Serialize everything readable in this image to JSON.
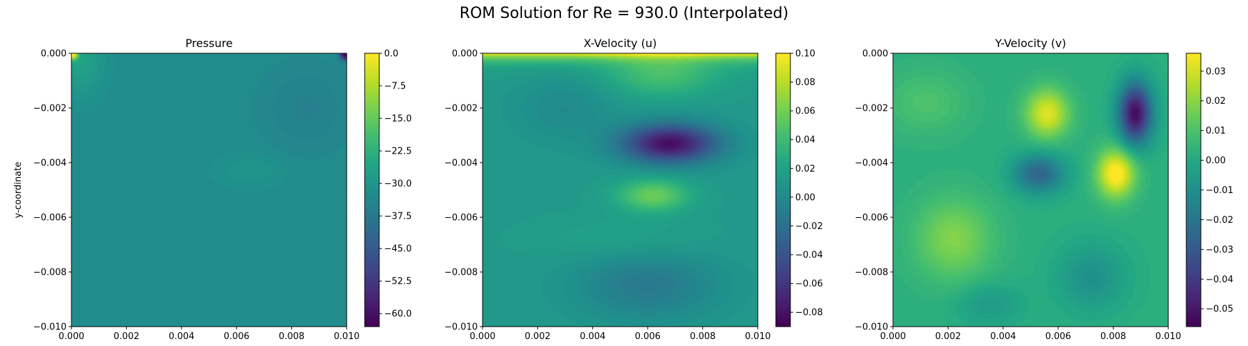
{
  "figure": {
    "title": "ROM Solution for Re = 930.0 (Interpolated)"
  },
  "chart_data": [
    {
      "type": "heatmap",
      "title": "Pressure",
      "xlabel": "",
      "ylabel": "y-coordinate",
      "xlim": [
        0.0,
        0.01
      ],
      "ylim": [
        -0.01,
        0.0
      ],
      "xticks": [
        "0.000",
        "0.002",
        "0.004",
        "0.006",
        "0.008",
        "0.010"
      ],
      "yticks": [
        "0.000",
        "−0.002",
        "−0.004",
        "−0.006",
        "−0.008",
        "−0.010"
      ],
      "colormap": "viridis",
      "colorbar": {
        "range": [
          -63.0,
          0.0
        ],
        "ticks": [
          0.0,
          -7.5,
          -15.0,
          -22.5,
          -30.0,
          -37.5,
          -45.0,
          -52.5,
          -60.0
        ],
        "tick_labels": [
          "0.0",
          "−7.5",
          "−15.0",
          "−22.5",
          "−30.0",
          "−37.5",
          "−45.0",
          "−52.5",
          "−60.0"
        ]
      },
      "field": {
        "background": -32.5,
        "features": [
          {
            "x": 0.0003,
            "y": -0.0003,
            "amp": 6,
            "rx": 0.0008,
            "ry": 0.0012
          },
          {
            "x": 5e-05,
            "y": -5e-05,
            "amp": 30,
            "rx": 0.00018,
            "ry": 0.00018
          },
          {
            "x": 0.0065,
            "y": -0.0043,
            "amp": 2.5,
            "rx": 0.0012,
            "ry": 0.0006
          },
          {
            "x": 0.0085,
            "y": -0.002,
            "amp": -3,
            "rx": 0.0015,
            "ry": 0.0015
          },
          {
            "x": 0.00995,
            "y": -5e-05,
            "amp": -30,
            "rx": 0.0002,
            "ry": 0.0002
          }
        ]
      }
    },
    {
      "type": "heatmap",
      "title": "X-Velocity (u)",
      "xlabel": "",
      "ylabel": "",
      "xlim": [
        0.0,
        0.01
      ],
      "ylim": [
        -0.01,
        0.0
      ],
      "xticks": [
        "0.000",
        "0.002",
        "0.004",
        "0.006",
        "0.008",
        "0.010"
      ],
      "yticks": [
        "0.000",
        "−0.002",
        "−0.004",
        "−0.006",
        "−0.008",
        "−0.010"
      ],
      "colormap": "viridis",
      "colorbar": {
        "range": [
          -0.09,
          0.1
        ],
        "ticks": [
          0.1,
          0.08,
          0.06,
          0.04,
          0.02,
          0.0,
          -0.02,
          -0.04,
          -0.06,
          -0.08
        ],
        "tick_labels": [
          "0.10",
          "0.08",
          "0.06",
          "0.04",
          "0.02",
          "0.00",
          "−0.02",
          "−0.04",
          "−0.06",
          "−0.08"
        ]
      },
      "field": {
        "background": 0.012,
        "lid_value": 0.1,
        "features": [
          {
            "x": 0.0068,
            "y": -0.0033,
            "amp": -0.095,
            "rx": 0.0017,
            "ry": 0.0007
          },
          {
            "x": 0.0062,
            "y": -0.0052,
            "amp": 0.045,
            "rx": 0.0013,
            "ry": 0.0006
          },
          {
            "x": 0.0065,
            "y": -0.0008,
            "amp": 0.03,
            "rx": 0.002,
            "ry": 0.0008
          },
          {
            "x": 0.003,
            "y": -0.002,
            "amp": -0.012,
            "rx": 0.0018,
            "ry": 0.0012
          },
          {
            "x": 0.006,
            "y": -0.0085,
            "amp": -0.025,
            "rx": 0.0025,
            "ry": 0.0012
          },
          {
            "x": 0.005,
            "y": -0.0068,
            "amp": 0.008,
            "rx": 0.003,
            "ry": 0.0008
          }
        ]
      }
    },
    {
      "type": "heatmap",
      "title": "Y-Velocity (v)",
      "xlabel": "",
      "ylabel": "",
      "xlim": [
        0.0,
        0.01
      ],
      "ylim": [
        -0.01,
        0.0
      ],
      "xticks": [
        "0.000",
        "0.002",
        "0.004",
        "0.006",
        "0.008",
        "0.010"
      ],
      "yticks": [
        "0.000",
        "−0.002",
        "−0.004",
        "−0.006",
        "−0.008",
        "−0.010"
      ],
      "colormap": "viridis",
      "colorbar": {
        "range": [
          -0.056,
          0.036
        ],
        "ticks": [
          0.03,
          0.02,
          0.01,
          0.0,
          -0.01,
          -0.02,
          -0.03,
          -0.04,
          -0.05
        ],
        "tick_labels": [
          "0.03",
          "0.02",
          "0.01",
          "0.00",
          "−0.01",
          "−0.02",
          "−0.03",
          "−0.04",
          "−0.05"
        ]
      },
      "field": {
        "background": 0.002,
        "features": [
          {
            "x": 0.0056,
            "y": -0.0022,
            "amp": 0.03,
            "rx": 0.0008,
            "ry": 0.0009
          },
          {
            "x": 0.0081,
            "y": -0.0044,
            "amp": 0.037,
            "rx": 0.0007,
            "ry": 0.0009
          },
          {
            "x": 0.0088,
            "y": -0.0022,
            "amp": -0.055,
            "rx": 0.0006,
            "ry": 0.0011
          },
          {
            "x": 0.0053,
            "y": -0.0044,
            "amp": -0.028,
            "rx": 0.0009,
            "ry": 0.0007
          },
          {
            "x": 0.0022,
            "y": -0.0068,
            "amp": 0.017,
            "rx": 0.0014,
            "ry": 0.0015
          },
          {
            "x": 0.0012,
            "y": -0.0018,
            "amp": 0.008,
            "rx": 0.0015,
            "ry": 0.0012
          },
          {
            "x": 0.0072,
            "y": -0.0082,
            "amp": -0.012,
            "rx": 0.0012,
            "ry": 0.0012
          },
          {
            "x": 0.0035,
            "y": -0.0092,
            "amp": -0.008,
            "rx": 0.0012,
            "ry": 0.0008
          }
        ]
      }
    }
  ]
}
